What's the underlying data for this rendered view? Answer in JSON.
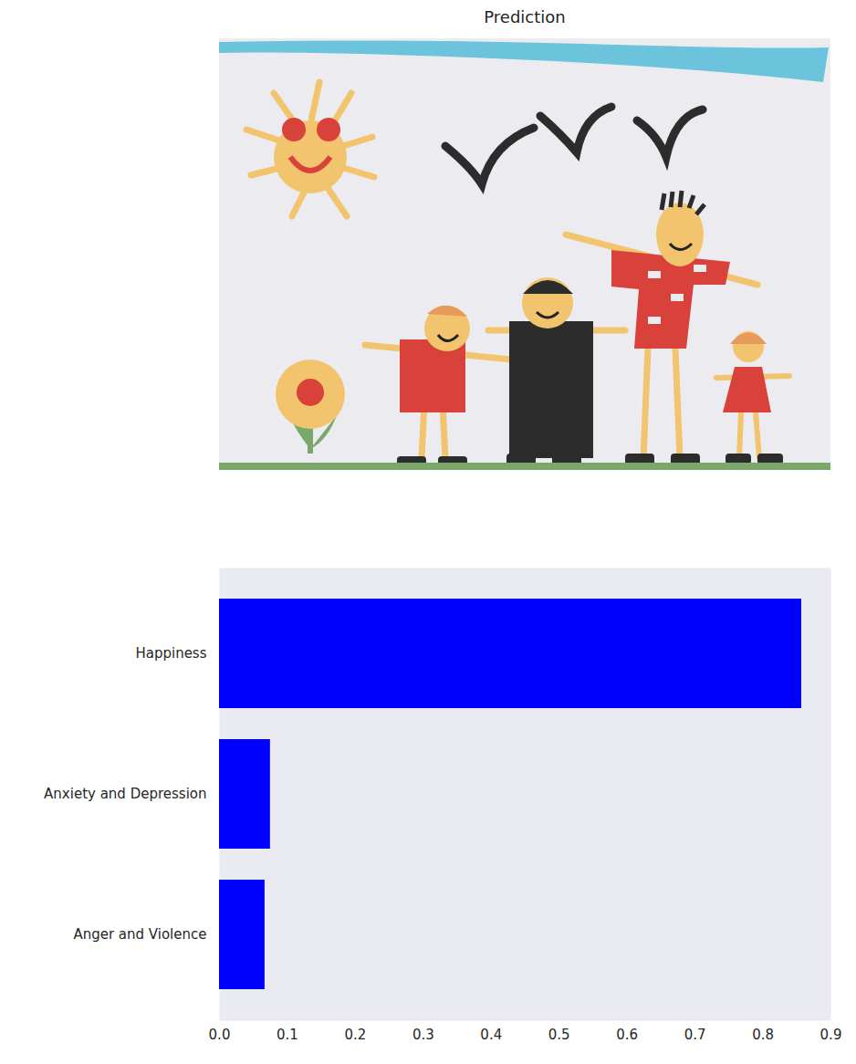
{
  "chart_data": {
    "type": "bar",
    "title": "Prediction",
    "orientation": "horizontal",
    "categories": [
      "Happiness",
      "Anxiety and Depression",
      "Anger and Violence"
    ],
    "values": [
      0.857,
      0.075,
      0.067
    ],
    "color": "#0000ff",
    "xlim": [
      0,
      0.9
    ],
    "xticks": [
      {
        "value": 0,
        "label": "0.0"
      },
      0.1,
      0.2,
      0.3,
      0.4,
      0.5,
      0.6,
      0.7,
      0.8,
      0.9
    ],
    "grid": false
  }
}
